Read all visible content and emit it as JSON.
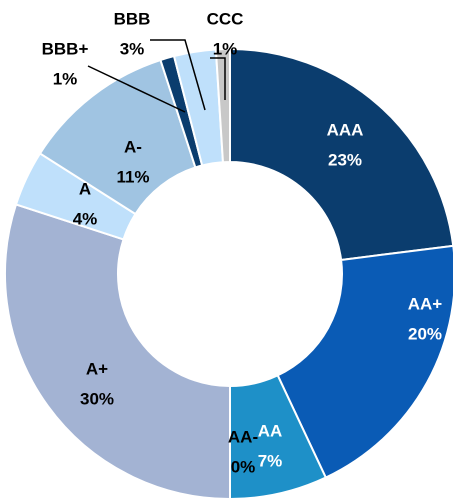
{
  "chart_data": {
    "type": "donut",
    "categories": [
      "AAA",
      "AA+",
      "AA",
      "AA-",
      "A+",
      "A",
      "A-",
      "BBB+",
      "BBB",
      "CCC"
    ],
    "values": [
      23,
      20,
      7,
      0,
      30,
      4,
      11,
      1,
      3,
      1
    ],
    "value_labels": [
      "23%",
      "20%",
      "7%",
      "0%",
      "30%",
      "4%",
      "11%",
      "1%",
      "3%",
      "1%"
    ],
    "colors": [
      "#0b3d6e",
      "#0a5bb5",
      "#1e90c8",
      "#1e90c8",
      "#a3b3d3",
      "#bfe0fb",
      "#a0c4e2",
      "#0b3d6e",
      "#bfe0fb",
      "#c8c8c8"
    ]
  }
}
